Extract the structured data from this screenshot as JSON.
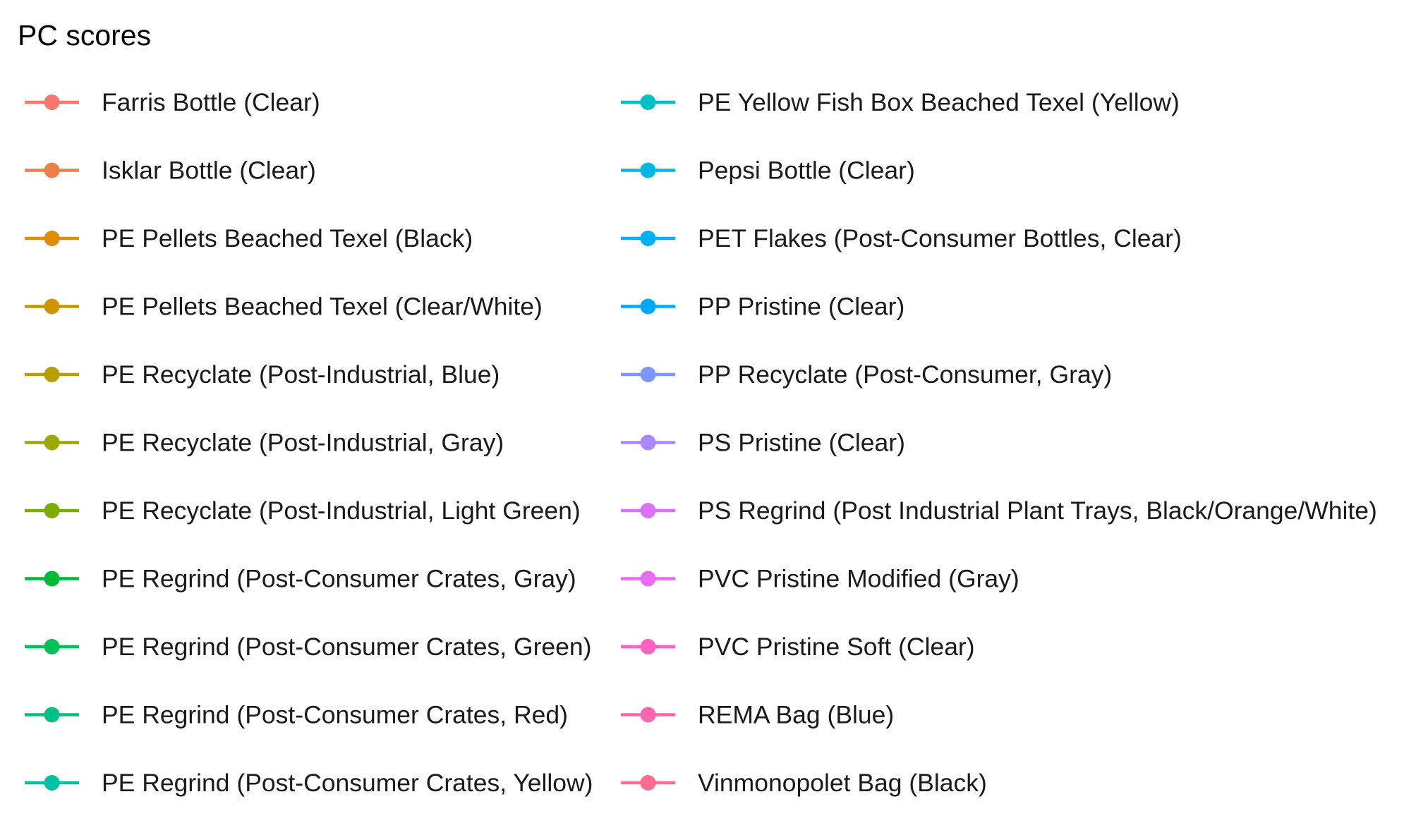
{
  "chart_data": {
    "type": "line",
    "legend_only": true,
    "legend": {
      "title": "PC scores",
      "columns": 2,
      "marker": "line-with-point"
    },
    "series": [
      {
        "name": "Farris Bottle (Clear)",
        "color": "#F8766D"
      },
      {
        "name": "Isklar Bottle (Clear)",
        "color": "#EF7F49"
      },
      {
        "name": "PE Pellets Beached Texel (Black)",
        "color": "#DE8C00"
      },
      {
        "name": "PE Pellets Beached Texel (Clear/White)",
        "color": "#CD9600"
      },
      {
        "name": "PE Recyclate (Post-Industrial, Blue)",
        "color": "#B79F00"
      },
      {
        "name": "PE Recyclate (Post-Industrial, Gray)",
        "color": "#9CA700"
      },
      {
        "name": "PE Recyclate (Post-Industrial, Light Green)",
        "color": "#7CAE00"
      },
      {
        "name": "PE Regrind (Post-Consumer Crates, Gray)",
        "color": "#00BA38"
      },
      {
        "name": "PE Regrind (Post-Consumer Crates, Green)",
        "color": "#00C05A"
      },
      {
        "name": "PE Regrind (Post-Consumer Crates, Red)",
        "color": "#00C087"
      },
      {
        "name": "PE Regrind (Post-Consumer Crates, Yellow)",
        "color": "#00BFA5"
      },
      {
        "name": "PE Yellow Fish Box Beached Texel (Yellow)",
        "color": "#00BFC4"
      },
      {
        "name": "Pepsi Bottle (Clear)",
        "color": "#00B9E3"
      },
      {
        "name": "PET Flakes (Post-Consumer Bottles, Clear)",
        "color": "#00B0F6"
      },
      {
        "name": "PP Pristine (Clear)",
        "color": "#00A9FF"
      },
      {
        "name": "PP Recyclate (Post-Consumer, Gray)",
        "color": "#7F96FF"
      },
      {
        "name": "PS Pristine (Clear)",
        "color": "#AC88FF"
      },
      {
        "name": "PS Regrind (Post Industrial Plant Trays, Black/Orange/White)",
        "color": "#DB72FB"
      },
      {
        "name": "PVC Pristine Modified (Gray)",
        "color": "#E76BF3"
      },
      {
        "name": "PVC Pristine Soft (Clear)",
        "color": "#FF61C3"
      },
      {
        "name": "REMA Bag (Blue)",
        "color": "#FF64B0"
      },
      {
        "name": "Vinmonopolet Bag (Black)",
        "color": "#FF6C91"
      }
    ]
  }
}
